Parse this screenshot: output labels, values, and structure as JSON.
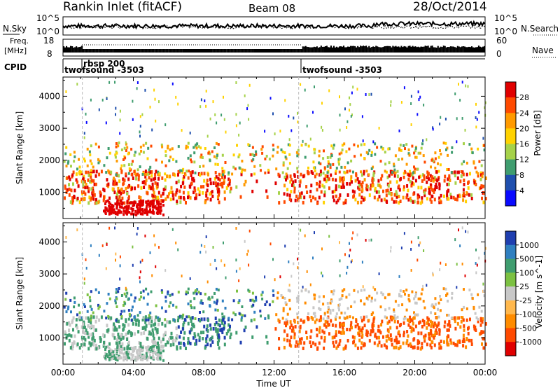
{
  "header": {
    "station": "Rankin Inlet (fitACF)",
    "beam": "Beam 08",
    "date": "28/Oct/2014"
  },
  "top_panels": {
    "nsky_label": "N.Sky",
    "nsearch_label": "N.Search",
    "freq_label_line1": "Freq.",
    "freq_label_line2": "[MHz]",
    "nave_label": "Nave",
    "cpid_label": "CPID",
    "noise_ticks_left": [
      "10^5",
      "10^0"
    ],
    "noise_ticks_right": [
      "10^5",
      "10^0"
    ],
    "freq_ticks": [
      "18",
      "8"
    ],
    "nave_ticks": [
      "60",
      "0"
    ],
    "cpid_segments": [
      {
        "label": "twofsound -3503"
      },
      {
        "label": "rbsp 200"
      },
      {
        "label": "twofsound -3503"
      }
    ]
  },
  "chart_data": [
    {
      "type": "heatmap",
      "title": "",
      "xlabel": "",
      "ylabel": "Slant Range [km]",
      "x_range_hours": [
        0,
        24
      ],
      "ylim": [
        180,
        4600
      ],
      "yticks": [
        1000,
        2000,
        3000,
        4000
      ],
      "colorbar": {
        "label": "Power [dB]",
        "ticks": [
          "28",
          "24",
          "20",
          "16",
          "12",
          "8",
          "4"
        ],
        "colors": [
          "#e00000",
          "#ff4a00",
          "#ff9a00",
          "#ffd200",
          "#a6d24a",
          "#3f9d6f",
          "#1f4fae",
          "#0a0aff"
        ]
      }
    },
    {
      "type": "heatmap",
      "title": "",
      "xlabel": "Time UT",
      "ylabel": "Slant Range [km]",
      "x_range_hours": [
        0,
        24
      ],
      "ylim": [
        180,
        4600
      ],
      "yticks": [
        1000,
        2000,
        3000,
        4000
      ],
      "xtick_labels": [
        "00:00",
        "04:00",
        "08:00",
        "12:00",
        "16:00",
        "20:00",
        "00:00"
      ],
      "colorbar": {
        "label": "Velocity [m s^-1]",
        "ticks": [
          "1000",
          "500",
          "100",
          "25",
          "-25",
          "-100",
          "-500",
          "-1000"
        ],
        "colors": [
          "#1f3fb0",
          "#2f7fc0",
          "#3f9d6f",
          "#7cc142",
          "#c8c8c8",
          "#ffb84d",
          "#ff8c00",
          "#ff4a00",
          "#e00000"
        ]
      }
    }
  ]
}
